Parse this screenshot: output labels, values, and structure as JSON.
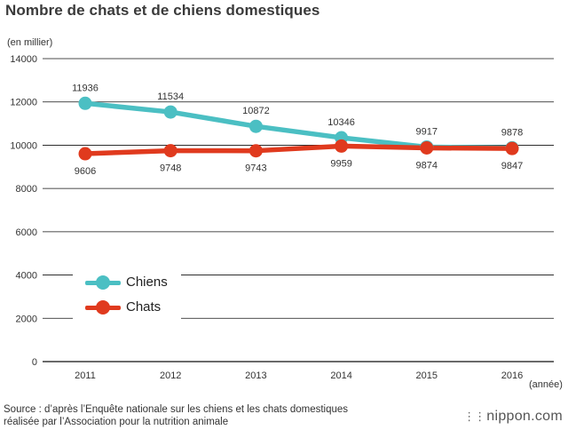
{
  "title": "Nombre de chats et de chiens domestiques",
  "y_unit": "(en millier)",
  "x_unit": "(année)",
  "source_line1": "Source : d’après l’Enquête nationale sur les chiens et les chats domestiques",
  "source_line2": "réalisée par l’Association pour la nutrition animale",
  "brand": "nippon.com",
  "colors": {
    "chiens": "#4bbfc3",
    "chats": "#e03a1e",
    "grid": "#111111"
  },
  "chart_data": {
    "type": "line",
    "title": "Nombre de chats et de chiens domestiques",
    "xlabel": "(année)",
    "ylabel": "(en millier)",
    "x": [
      "2011",
      "2012",
      "2013",
      "2014",
      "2015",
      "2016"
    ],
    "ylim": [
      0,
      14000
    ],
    "yticks": [
      0,
      2000,
      4000,
      6000,
      8000,
      10000,
      12000,
      14000
    ],
    "grid": true,
    "legend_position": "bottom-left",
    "series": [
      {
        "name": "Chiens",
        "color": "#4bbfc3",
        "values": [
          11936,
          11534,
          10872,
          10346,
          9917,
          9878
        ],
        "labels_position": "above"
      },
      {
        "name": "Chats",
        "color": "#e03a1e",
        "values": [
          9606,
          9748,
          9743,
          9959,
          9874,
          9847
        ],
        "labels_position": "below"
      }
    ]
  }
}
